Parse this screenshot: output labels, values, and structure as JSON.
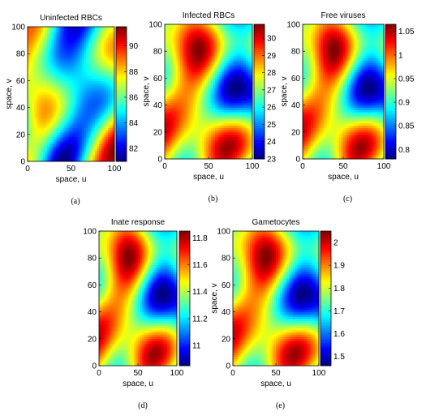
{
  "figure": {
    "panels": [
      {
        "label": "(a)",
        "title": "Uninfected RBCs",
        "xlabel": "space, u",
        "ylabel": "space, v",
        "colorbar_ticks": [
          82,
          84,
          86,
          88,
          90
        ],
        "colorbar_ticks_text": [
          "82",
          "84",
          "86",
          "88",
          "90"
        ]
      },
      {
        "label": "(b)",
        "title": "Infected RBCs",
        "xlabel": "space, u",
        "ylabel": "space, v",
        "colorbar_ticks": [
          23,
          24,
          25,
          26,
          27,
          28,
          29,
          30
        ],
        "colorbar_ticks_text": [
          "23",
          "24",
          "25",
          "26",
          "27",
          "28",
          "29",
          "30"
        ]
      },
      {
        "label": "(c)",
        "title": "Free viruses",
        "xlabel": "space, u",
        "ylabel": "space, v",
        "colorbar_ticks": [
          0.8,
          0.85,
          0.9,
          0.95,
          1,
          1.05
        ],
        "colorbar_ticks_text": [
          "0.8",
          "0.85",
          "0.9",
          "0.95",
          "1",
          "1.05"
        ]
      },
      {
        "label": "(d)",
        "title": "Inate response",
        "xlabel": "space, u",
        "ylabel": "",
        "colorbar_ticks": [
          11,
          11.2,
          11.4,
          11.6,
          11.8
        ],
        "colorbar_ticks_text": [
          "11",
          "11.2",
          "11.4",
          "11.6",
          "11.8"
        ]
      },
      {
        "label": "(e)",
        "title": "Gametocytes",
        "xlabel": "space, u",
        "ylabel": "space, v",
        "colorbar_ticks": [
          1.5,
          1.6,
          1.7,
          1.8,
          1.9,
          2
        ],
        "colorbar_ticks_text": [
          "1.5",
          "1.6",
          "1.7",
          "1.8",
          "1.9",
          "2"
        ]
      }
    ]
  },
  "chart_data": [
    {
      "type": "heatmap",
      "title": "Uninfected RBCs",
      "xlabel": "space, u",
      "ylabel": "space, v",
      "xlim": [
        0,
        100
      ],
      "ylim": [
        0,
        100
      ],
      "x_ticks": [
        0,
        50,
        100
      ],
      "x_ticks_text": [
        "0",
        "50",
        "100"
      ],
      "y_ticks": [
        0,
        20,
        40,
        60,
        80,
        100
      ],
      "y_ticks_text": [
        "0",
        "20",
        "40",
        "60",
        "80",
        "100"
      ],
      "colorbar_range": [
        81,
        91.5
      ],
      "colormap": "jet",
      "pattern_seed": 7
    },
    {
      "type": "heatmap",
      "title": "Infected RBCs",
      "xlabel": "space, u",
      "ylabel": "space, v",
      "xlim": [
        0,
        100
      ],
      "ylim": [
        0,
        100
      ],
      "x_ticks": [
        0,
        50,
        100
      ],
      "x_ticks_text": [
        "0",
        "50",
        "100"
      ],
      "y_ticks": [
        0,
        20,
        40,
        60,
        80,
        100
      ],
      "y_ticks_text": [
        "0",
        "20",
        "40",
        "60",
        "80",
        "100"
      ],
      "colorbar_range": [
        23,
        30.8
      ],
      "colormap": "jet",
      "pattern_seed": 19
    },
    {
      "type": "heatmap",
      "title": "Free viruses",
      "xlabel": "space, u",
      "ylabel": "space, v",
      "xlim": [
        0,
        100
      ],
      "ylim": [
        0,
        100
      ],
      "x_ticks": [
        0,
        50,
        100
      ],
      "x_ticks_text": [
        "0",
        "50",
        "100"
      ],
      "y_ticks": [
        0,
        20,
        40,
        60,
        80,
        100
      ],
      "y_ticks_text": [
        "0",
        "20",
        "40",
        "60",
        "80",
        "100"
      ],
      "colorbar_range": [
        0.78,
        1.065
      ],
      "colormap": "jet",
      "pattern_seed": 19
    },
    {
      "type": "heatmap",
      "title": "Inate response",
      "xlabel": "space, u",
      "ylabel": "",
      "xlim": [
        0,
        100
      ],
      "ylim": [
        0,
        100
      ],
      "x_ticks": [
        0,
        50,
        100
      ],
      "x_ticks_text": [
        "0",
        "50",
        "100"
      ],
      "y_ticks": [
        0,
        20,
        40,
        60,
        80,
        100
      ],
      "y_ticks_text": [
        "0",
        "20",
        "40",
        "60",
        "80",
        "100"
      ],
      "colorbar_range": [
        10.85,
        11.85
      ],
      "colormap": "jet",
      "pattern_seed": 19
    },
    {
      "type": "heatmap",
      "title": "Gametocytes",
      "xlabel": "space, u",
      "ylabel": "space, v",
      "xlim": [
        0,
        100
      ],
      "ylim": [
        0,
        100
      ],
      "x_ticks": [
        0,
        50,
        100
      ],
      "x_ticks_text": [
        "0",
        "50",
        "100"
      ],
      "y_ticks": [
        0,
        20,
        40,
        60,
        80,
        100
      ],
      "y_ticks_text": [
        "0",
        "20",
        "40",
        "60",
        "80",
        "100"
      ],
      "colorbar_range": [
        1.46,
        2.05
      ],
      "colormap": "jet",
      "pattern_seed": 19
    }
  ]
}
